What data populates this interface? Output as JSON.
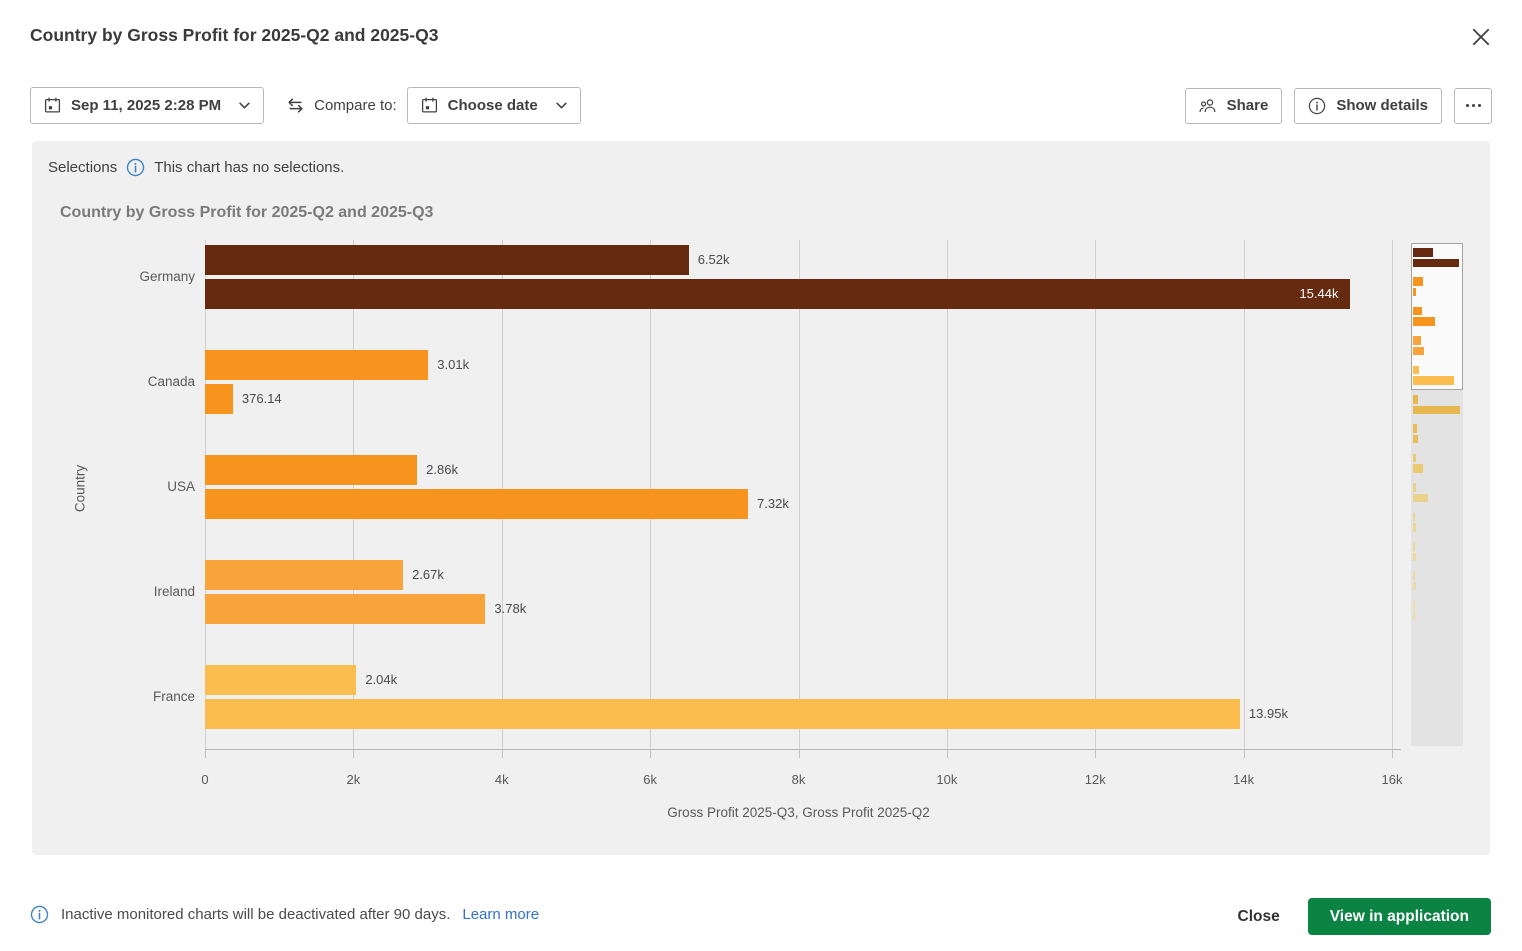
{
  "header": {
    "title": "Country by Gross Profit for 2025-Q2 and 2025-Q3"
  },
  "toolbar": {
    "date_value": "Sep 11, 2025 2:28 PM",
    "compare_label": "Compare to:",
    "compare_value": "Choose date",
    "share_label": "Share",
    "show_details_label": "Show details"
  },
  "selections": {
    "label": "Selections",
    "message": "This chart has no selections."
  },
  "chart_data": {
    "type": "bar",
    "orientation": "horizontal",
    "title": "Country by Gross Profit for 2025-Q2 and 2025-Q3",
    "xlabel": "Gross Profit 2025-Q3, Gross Profit 2025-Q2",
    "ylabel": "Country",
    "xlim": [
      0,
      16000
    ],
    "xticks": [
      0,
      2000,
      4000,
      6000,
      8000,
      10000,
      12000,
      14000,
      16000
    ],
    "xtick_labels": [
      "0",
      "2k",
      "4k",
      "6k",
      "8k",
      "10k",
      "12k",
      "14k",
      "16k"
    ],
    "grid": true,
    "legend_position": "none",
    "categories": [
      "Germany",
      "Canada",
      "USA",
      "Ireland",
      "France"
    ],
    "series": [
      {
        "name": "Gross Profit 2025-Q3",
        "values": [
          6520,
          3010,
          2860,
          2670,
          2040
        ],
        "labels": [
          "6.52k",
          "3.01k",
          "2.86k",
          "2.67k",
          "2.04k"
        ]
      },
      {
        "name": "Gross Profit 2025-Q2",
        "values": [
          15440,
          376.14,
          7320,
          3780,
          13950
        ],
        "labels": [
          "15.44k",
          "376.14",
          "7.32k",
          "3.78k",
          "13.95k"
        ]
      }
    ],
    "bar_colors": {
      "Germany": "#662A10",
      "Canada": "#F7941E",
      "USA": "#F7941E",
      "Ireland": "#F9A43B",
      "France": "#FBBD4D"
    }
  },
  "minimap": {
    "bg": "#e3e3e3",
    "viewport_fill": "#fafafa",
    "viewport_border": "#a5a5a5",
    "viewport_groups": 5,
    "groups": [
      {
        "color": "#662A10",
        "widths": [
          0.41,
          0.96
        ]
      },
      {
        "color": "#F7941E",
        "widths": [
          0.2,
          0.06
        ]
      },
      {
        "color": "#F7941E",
        "widths": [
          0.18,
          0.455
        ]
      },
      {
        "color": "#F9A43B",
        "widths": [
          0.16,
          0.235
        ]
      },
      {
        "color": "#FBBD4D",
        "widths": [
          0.12,
          0.86
        ]
      },
      {
        "color": "#E9B750",
        "widths": [
          0.1,
          0.98
        ]
      },
      {
        "color": "#E9BE58",
        "widths": [
          0.09,
          0.095
        ]
      },
      {
        "color": "#EACB72",
        "widths": [
          0.065,
          0.2
        ]
      },
      {
        "color": "#E9D28C",
        "widths": [
          0.055,
          0.31
        ]
      },
      {
        "color": "#EBD794",
        "widths": [
          0.05,
          0.065
        ]
      },
      {
        "color": "#ECDA9A",
        "widths": [
          0.05,
          0.07
        ]
      },
      {
        "color": "#EDDCA2",
        "widths": [
          0.045,
          0.055
        ]
      },
      {
        "color": "#EEDFA8",
        "widths": [
          0.04,
          0.05
        ]
      }
    ]
  },
  "footer": {
    "note": "Inactive monitored charts will be deactivated after 90 days.",
    "learn_more": "Learn more",
    "close_label": "Close",
    "view_label": "View in application"
  },
  "colors": {
    "accent_green": "#0A8343",
    "link_blue": "#3172C8",
    "info_blue": "#3E82C8",
    "panel_bg": "#f0f0f0",
    "gridline": "#cfcfcf"
  },
  "icons": {
    "calendar": "calendar-icon",
    "chevron": "chevron-down-icon",
    "compare": "compare-arrows-icon",
    "share": "share-people-icon",
    "info": "info-icon",
    "more": "more-options-icon",
    "close": "close-icon"
  }
}
